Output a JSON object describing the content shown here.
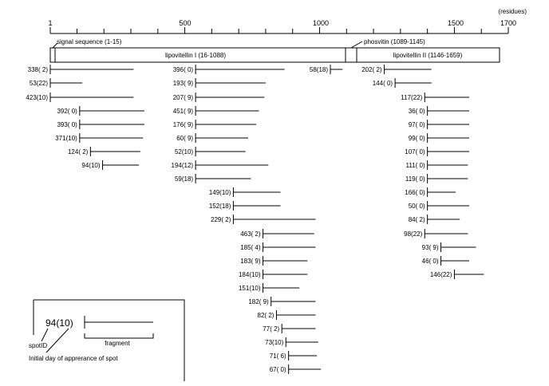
{
  "axis": {
    "unit_label": "(residues)",
    "ticks": [
      {
        "value": 1,
        "label": "1"
      },
      {
        "value": 500,
        "label": "500"
      },
      {
        "value": 1000,
        "label": "1000"
      },
      {
        "value": 1500,
        "label": "1500"
      },
      {
        "value": 1700,
        "label": "1700"
      }
    ]
  },
  "regions": {
    "signal": "signal sequence (1-15)",
    "lipovitellin1": "lipovitellin  I  (16-1088)",
    "phosvitin": "phosvitin (1089-1145)",
    "lipovitellin2": "lipovitellin  II  (1146-1659)"
  },
  "fragments": [
    {
      "label": "338( 2)",
      "start": 1,
      "end": 310
    },
    {
      "label": "53(22)",
      "start": 1,
      "end": 120
    },
    {
      "label": "423(10)",
      "start": 1,
      "end": 310
    },
    {
      "label": "392( 0)",
      "start": 110,
      "end": 350
    },
    {
      "label": "393( 0)",
      "start": 110,
      "end": 350
    },
    {
      "label": "371(10)",
      "start": 110,
      "end": 345
    },
    {
      "label": "124( 2)",
      "start": 150,
      "end": 335
    },
    {
      "label": "94(10)",
      "start": 195,
      "end": 330
    },
    {
      "label": "396( 0)",
      "start": 540,
      "end": 870
    },
    {
      "label": "193( 9)",
      "start": 540,
      "end": 800
    },
    {
      "label": "207( 9)",
      "start": 540,
      "end": 795
    },
    {
      "label": "451( 9)",
      "start": 540,
      "end": 775
    },
    {
      "label": "176( 9)",
      "start": 540,
      "end": 765
    },
    {
      "label": "60( 9)",
      "start": 540,
      "end": 735
    },
    {
      "label": "52(10)",
      "start": 540,
      "end": 725
    },
    {
      "label": "194(12)",
      "start": 540,
      "end": 810
    },
    {
      "label": "59(18)",
      "start": 540,
      "end": 745
    },
    {
      "label": "149(10)",
      "start": 680,
      "end": 855
    },
    {
      "label": "152(18)",
      "start": 680,
      "end": 855
    },
    {
      "label": "229( 2)",
      "start": 680,
      "end": 985
    },
    {
      "label": "463( 2)",
      "start": 790,
      "end": 980
    },
    {
      "label": "185( 4)",
      "start": 790,
      "end": 985
    },
    {
      "label": "183( 9)",
      "start": 790,
      "end": 955
    },
    {
      "label": "184(10)",
      "start": 790,
      "end": 955
    },
    {
      "label": "151(10)",
      "start": 790,
      "end": 925
    },
    {
      "label": "182( 9)",
      "start": 820,
      "end": 985
    },
    {
      "label": "82( 2)",
      "start": 840,
      "end": 985
    },
    {
      "label": "77( 2)",
      "start": 860,
      "end": 985
    },
    {
      "label": "73(10)",
      "start": 875,
      "end": 995
    },
    {
      "label": "71( 6)",
      "start": 885,
      "end": 990
    },
    {
      "label": "67( 0)",
      "start": 885,
      "end": 1005
    },
    {
      "label": "58(18)",
      "start": 1040,
      "end": 1085
    },
    {
      "label": "202( 2)",
      "start": 1240,
      "end": 1415
    },
    {
      "label": "144( 0)",
      "start": 1280,
      "end": 1415
    },
    {
      "label": "117(22)",
      "start": 1390,
      "end": 1555
    },
    {
      "label": "36( 0)",
      "start": 1400,
      "end": 1555
    },
    {
      "label": "97( 0)",
      "start": 1400,
      "end": 1555
    },
    {
      "label": "99( 0)",
      "start": 1400,
      "end": 1555
    },
    {
      "label": "107( 0)",
      "start": 1400,
      "end": 1555
    },
    {
      "label": "111( 0)",
      "start": 1400,
      "end": 1550
    },
    {
      "label": "119( 0)",
      "start": 1400,
      "end": 1550
    },
    {
      "label": "166( 0)",
      "start": 1400,
      "end": 1505
    },
    {
      "label": "50( 0)",
      "start": 1400,
      "end": 1555
    },
    {
      "label": "84( 2)",
      "start": 1400,
      "end": 1520
    },
    {
      "label": "98(22)",
      "start": 1390,
      "end": 1550
    },
    {
      "label": "93( 9)",
      "start": 1450,
      "end": 1580
    },
    {
      "label": "46( 0)",
      "start": 1450,
      "end": 1555
    },
    {
      "label": "146(22)",
      "start": 1500,
      "end": 1610
    }
  ],
  "legend": {
    "example_label": "94(10)",
    "fragment_label": "fragment",
    "spot_id_label": "spotID",
    "initial_day_label": "Initial day of apprerance of spot"
  }
}
